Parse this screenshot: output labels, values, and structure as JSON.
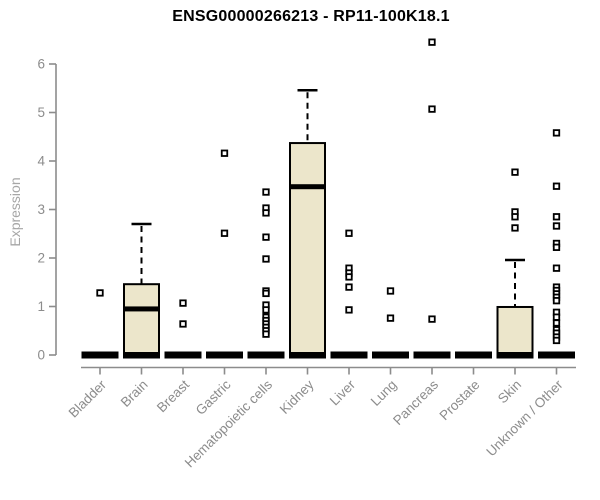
{
  "chart_data": {
    "type": "boxplot",
    "title": "ENSG00000266213 - RP11-100K18.1",
    "ylabel": "Expression",
    "xlabel": "",
    "ylim": [
      0,
      6.6
    ],
    "yticks": [
      0,
      1,
      2,
      3,
      4,
      5,
      6
    ],
    "grid": false,
    "legend": false,
    "marker": "open-square",
    "categories": [
      "Bladder",
      "Brain",
      "Breast",
      "Gastric",
      "Hematopoietic cells",
      "Kidney",
      "Liver",
      "Lung",
      "Pancreas",
      "Prostate",
      "Skin",
      "Unknown / Other"
    ],
    "series": [
      {
        "category": "Bladder",
        "q1": 0,
        "median": 0,
        "q3": 0,
        "whisker_low": 0,
        "whisker_high": 0,
        "outliers": [
          1.28
        ]
      },
      {
        "category": "Brain",
        "q1": 0,
        "median": 0.95,
        "q3": 1.46,
        "whisker_low": 0,
        "whisker_high": 2.7,
        "outliers": []
      },
      {
        "category": "Breast",
        "q1": 0,
        "median": 0,
        "q3": 0,
        "whisker_low": 0,
        "whisker_high": 0,
        "outliers": [
          1.07,
          0.64
        ]
      },
      {
        "category": "Gastric",
        "q1": 0,
        "median": 0,
        "q3": 0,
        "whisker_low": 0,
        "whisker_high": 0,
        "outliers": [
          4.16,
          2.51
        ]
      },
      {
        "category": "Hematopoietic cells",
        "q1": 0,
        "median": 0,
        "q3": 0,
        "whisker_low": 0,
        "whisker_high": 0,
        "outliers": [
          3.36,
          3.03,
          2.93,
          2.43,
          1.98,
          1.32,
          1.27,
          1.03,
          0.93,
          0.78,
          0.71,
          0.64,
          0.57,
          0.5,
          0.43
        ]
      },
      {
        "category": "Kidney",
        "q1": 0,
        "median": 3.47,
        "q3": 4.37,
        "whisker_low": 0,
        "whisker_high": 5.46,
        "outliers": []
      },
      {
        "category": "Liver",
        "q1": 0,
        "median": 0,
        "q3": 0,
        "whisker_low": 0,
        "whisker_high": 0,
        "outliers": [
          2.51,
          1.79,
          1.69,
          1.61,
          1.4,
          0.93
        ]
      },
      {
        "category": "Lung",
        "q1": 0,
        "median": 0,
        "q3": 0,
        "whisker_low": 0,
        "whisker_high": 0,
        "outliers": [
          1.32,
          0.76
        ]
      },
      {
        "category": "Pancreas",
        "q1": 0,
        "median": 0,
        "q3": 0,
        "whisker_low": 0,
        "whisker_high": 0,
        "outliers": [
          6.45,
          5.07,
          0.74
        ]
      },
      {
        "category": "Prostate",
        "q1": 0,
        "median": 0,
        "q3": 0,
        "whisker_low": 0,
        "whisker_high": 0,
        "outliers": []
      },
      {
        "category": "Skin",
        "q1": 0,
        "median": 0,
        "q3": 0.99,
        "whisker_low": 0,
        "whisker_high": 1.96,
        "outliers": [
          3.77,
          2.95,
          2.85,
          2.62
        ]
      },
      {
        "category": "Unknown / Other",
        "q1": 0,
        "median": 0,
        "q3": 0,
        "whisker_low": 0,
        "whisker_high": 0,
        "outliers": [
          4.58,
          3.48,
          2.85,
          2.66,
          2.3,
          2.22,
          1.79,
          1.4,
          1.33,
          1.26,
          1.19,
          1.12,
          0.88,
          0.78,
          0.66,
          0.52,
          0.45,
          0.37,
          0.3
        ]
      }
    ],
    "colors": {
      "box_fill": "#ece6cb",
      "box_stroke": "#000000",
      "median": "#000000",
      "whisker": "#000000",
      "outlier_stroke": "#000000",
      "outlier_fill": "#ffffff",
      "axis": "#8c8c8c",
      "tick_label": "#8c8c8c",
      "axis_title": "#a6a6a6",
      "title": "#000000",
      "background": "#ffffff"
    }
  }
}
